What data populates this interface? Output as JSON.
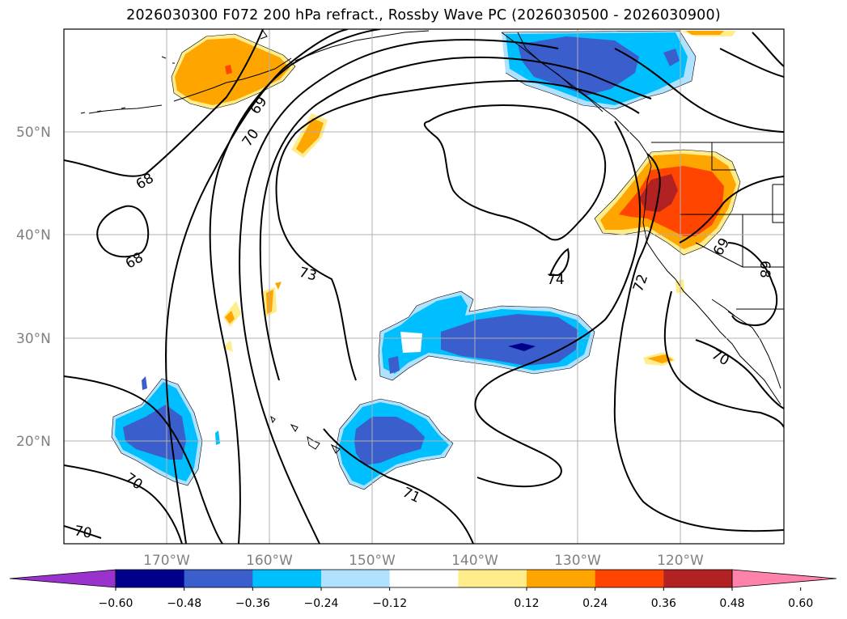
{
  "title": "2026030300 F072 200 hPa refract., Rossby Wave PC (2026030500 - 2026030900)",
  "map": {
    "lat_labels": [
      "50°N",
      "40°N",
      "30°N",
      "20°N"
    ],
    "lon_labels": [
      "170°W",
      "160°W",
      "150°W",
      "140°W",
      "130°W",
      "120°W"
    ],
    "contour_labels": [
      "68",
      "68",
      "69",
      "70",
      "70",
      "70",
      "71",
      "72",
      "73",
      "74",
      "69",
      "70",
      "68"
    ]
  },
  "colorbar": {
    "ticks": [
      "−0.60",
      "−0.48",
      "−0.36",
      "−0.24",
      "−0.12",
      "0.12",
      "0.24",
      "0.36",
      "0.48",
      "0.60"
    ],
    "colors": [
      "#9a32cd",
      "#00008b",
      "#3a5fcd",
      "#00bfff",
      "#b0e2ff",
      "#ffffff",
      "#ffec8b",
      "#ffa500",
      "#ff4500",
      "#b22222",
      "#ff82ab"
    ]
  }
}
